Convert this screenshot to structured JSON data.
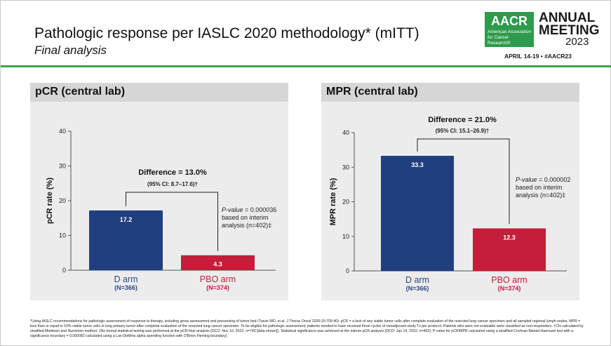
{
  "header": {
    "title": "Pathologic response per IASLC 2020 methodology* (mITT)",
    "subtitle": "Final analysis"
  },
  "logo": {
    "brand": "AACR",
    "org_name": "American Association for Cancer Research®",
    "meeting_line1": "ANNUAL",
    "meeting_line2": "MEETING",
    "year": "2023",
    "dates": "APRIL 14-19 • #AACR23",
    "brand_color": "#2e9a4b"
  },
  "colors": {
    "d_arm": "#213f7f",
    "pbo_arm": "#c41e3a",
    "accent_rule": "#3aa54a",
    "arm_label_d": "#2a4a8c",
    "arm_label_pbo": "#c41e3a"
  },
  "chart_data": [
    {
      "type": "bar",
      "title": "pCR (central lab)",
      "ylabel": "pCR rate (%)",
      "ylim": [
        0,
        40
      ],
      "yticks": [
        0,
        10,
        20,
        30,
        40
      ],
      "categories": [
        "D arm",
        "PBO arm"
      ],
      "category_n": [
        "(N=366)",
        "(N=374)"
      ],
      "values": [
        17.2,
        4.3
      ],
      "value_labels": [
        "17.2",
        "4.3"
      ],
      "difference_label": "Difference = 13.0%",
      "ci_label": "(95% CI: 8.7–17.6)†",
      "pvalue_label": "P-value",
      "pvalue_text": "= 0.000036 based on interim analysis (n=402)‡",
      "pvalue_lines": [
        "= 0.000036",
        "based on interim",
        "analysis (n=402)‡"
      ]
    },
    {
      "type": "bar",
      "title": "MPR (central lab)",
      "ylabel": "MPR rate (%)",
      "ylim": [
        0,
        40
      ],
      "yticks": [
        0,
        10,
        20,
        30,
        40
      ],
      "categories": [
        "D arm",
        "PBO arm"
      ],
      "category_n": [
        "(N=366)",
        "(N=374)"
      ],
      "values": [
        33.3,
        12.3
      ],
      "value_labels": [
        "33.3",
        "12.3"
      ],
      "difference_label": "Difference = 21.0%",
      "ci_label": "(95% CI: 15.1–26.9)†",
      "pvalue_label": "P-value",
      "pvalue_text": "= 0.000002 based on interim analysis (n=402)‡",
      "pvalue_lines": [
        "= 0.000002",
        "based on interim",
        "analysis (n=402)‡"
      ]
    }
  ],
  "footnote": "*Using IASLC recommendations for pathologic assessment of response to therapy, including gross assessment and processing of tumor bed (Travis WD, et al. J Thorac Oncol 2020;15:709-40): pCR = a lack of any viable tumor cells after complete evaluation of the resected lung cancer specimen and all sampled regional lymph nodes, MPR = less than or equal to 10% viable tumor cells in lung primary tumor after complete evaluation of the resected lung cancer specimen. To be eligible for pathologic assessment, patients needed to have received three cycles of neoadjuvant study Tx per protocol. Patients who were not evaluable were classified as non-responders. †CIs calculated by stratified Miettinen and Nurminen method. ‡No formal statistical testing was performed at the pCR final analysis (DCO: Nov 10, 2022; n=740 [data shown]). Statistical significance was achieved at the interim pCR analysis (DCO: Jan 14, 2022; n=402); P-value for pCR/MPR calculated using a stratified Cochran-Mantel-Haenszel test with a significance boundary = 0.000082 calculated using a Lan-DeMets alpha spending function with O'Brien Fleming boundary)."
}
